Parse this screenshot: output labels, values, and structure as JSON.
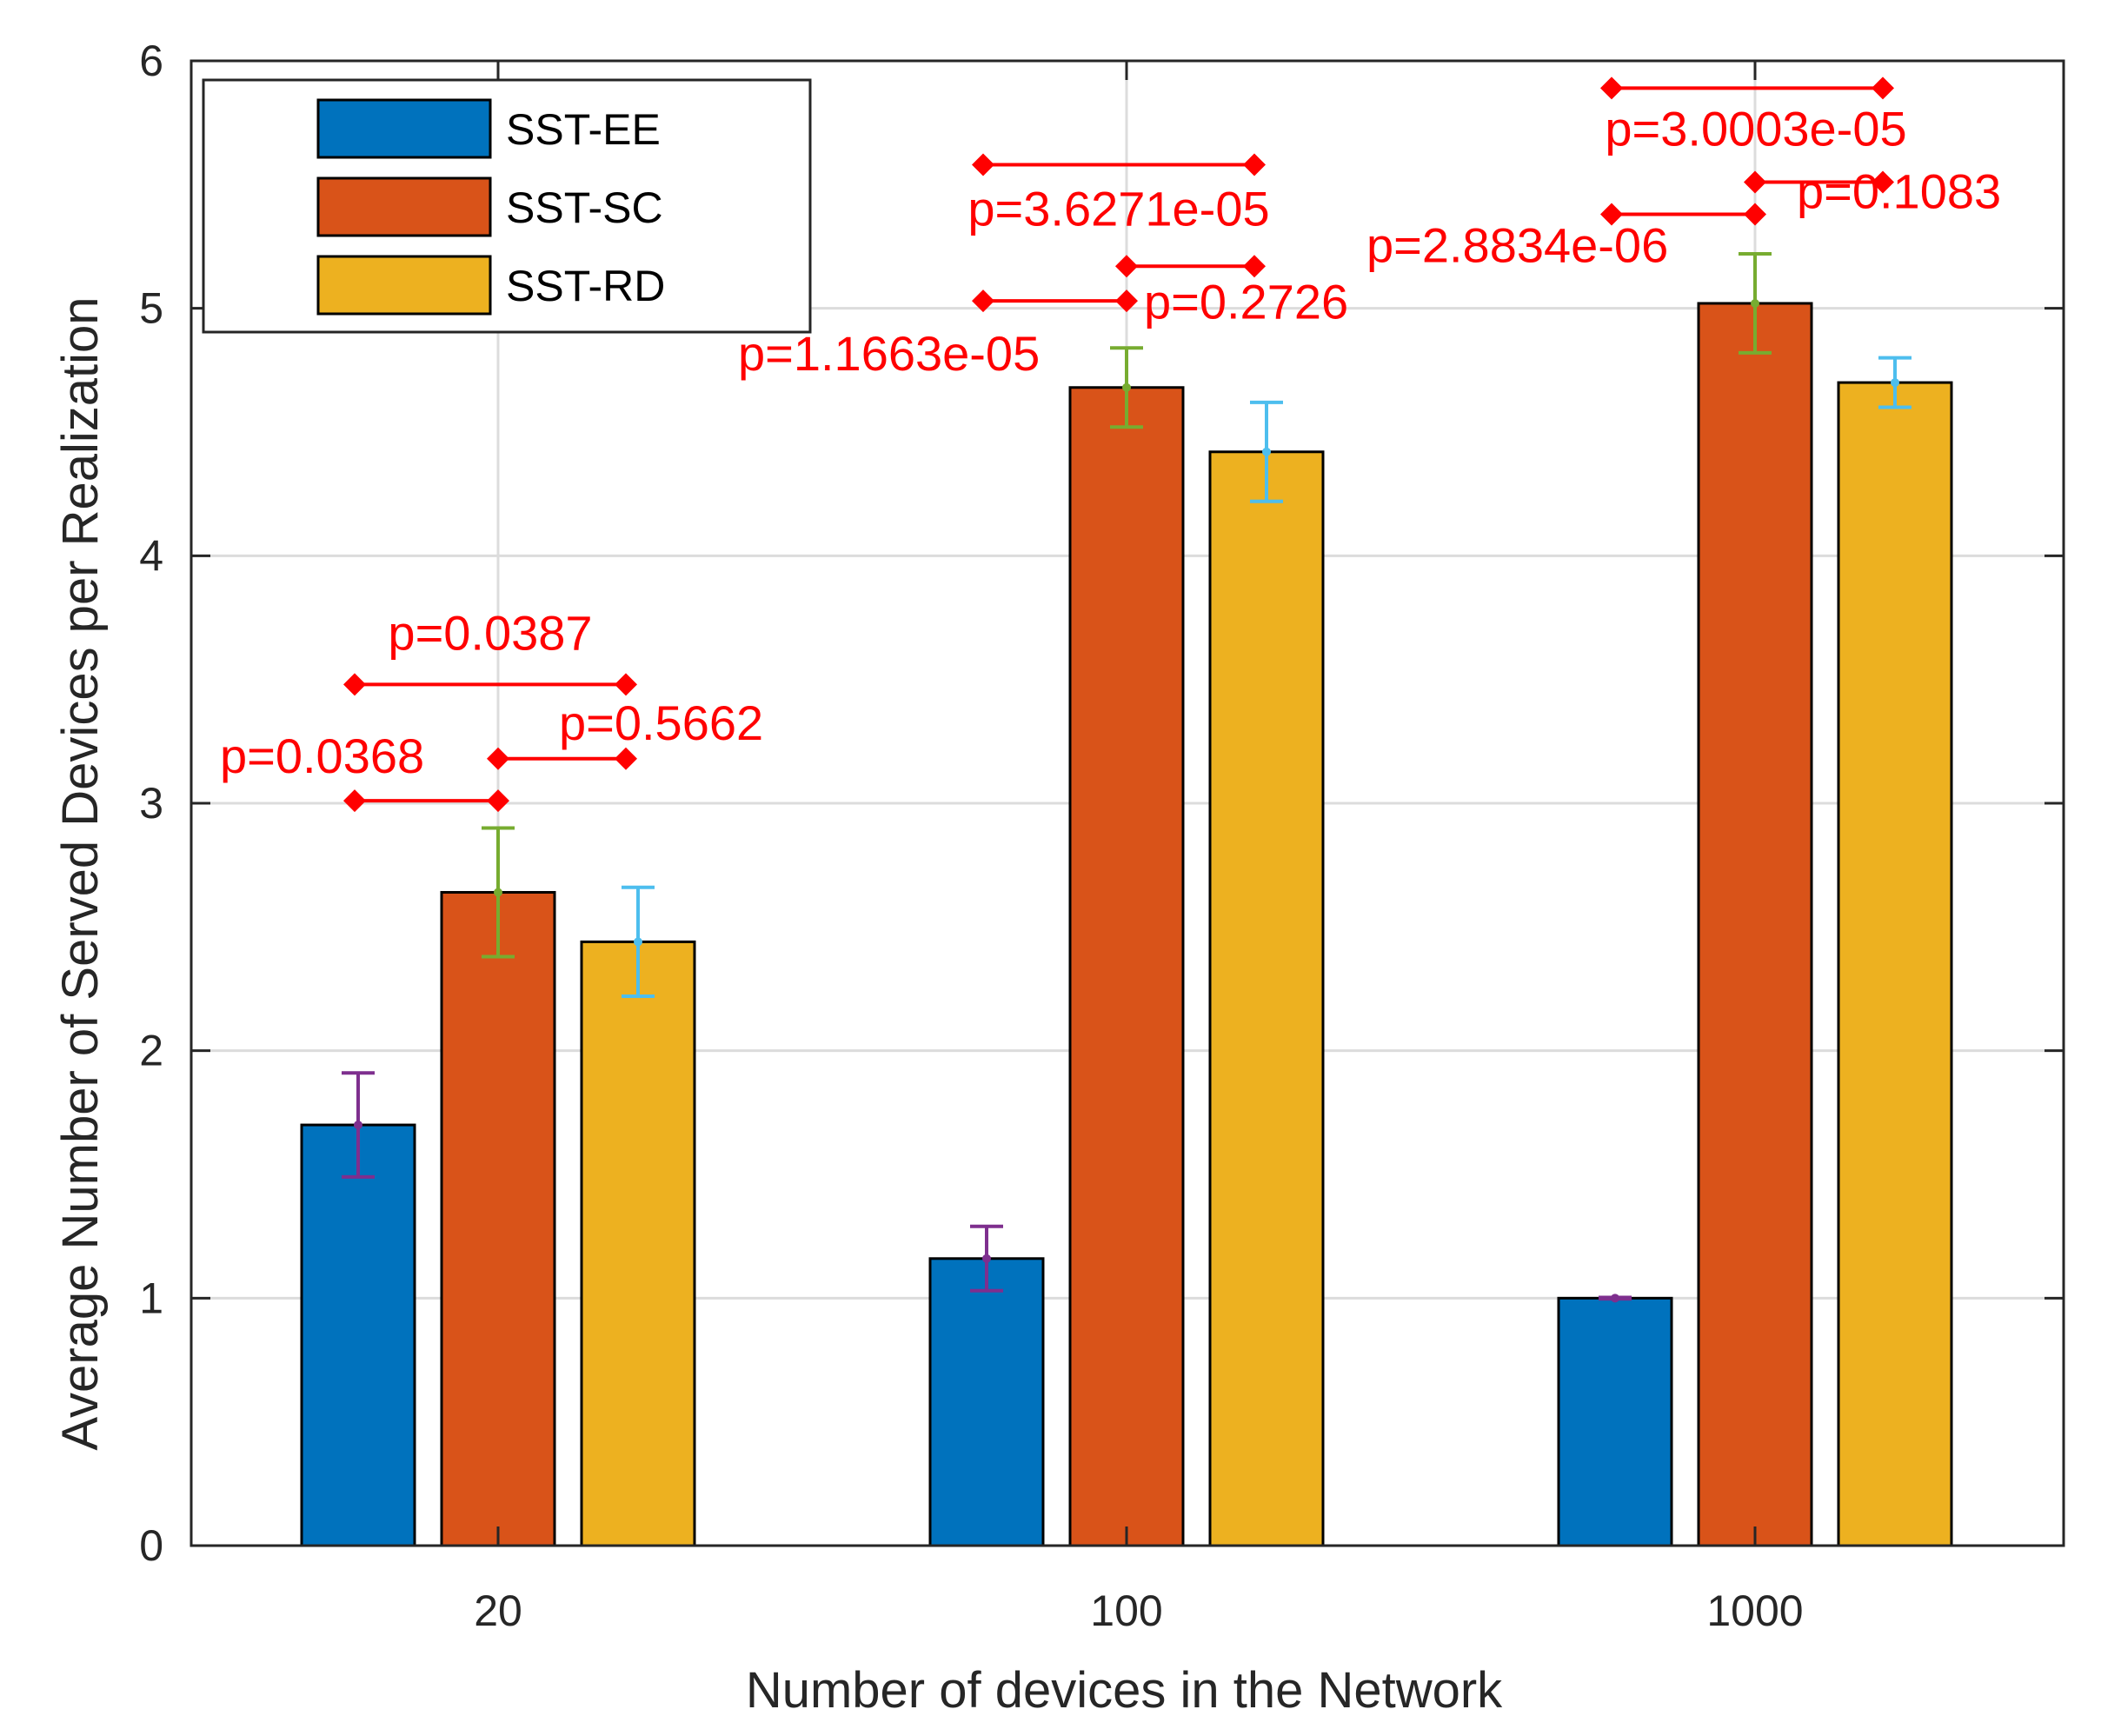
{
  "chart_data": {
    "type": "bar",
    "title": "",
    "xlabel": "Number of devices in the Network",
    "ylabel": "Average Number of Served Devices per Realization",
    "categories": [
      "20",
      "100",
      "1000"
    ],
    "ylim": [
      0,
      6
    ],
    "yticks": [
      0,
      1,
      2,
      3,
      4,
      5,
      6
    ],
    "grid": true,
    "legend_position": "top-left",
    "series": [
      {
        "name": "SST-EE",
        "color": "#0072BD",
        "values": [
          1.7,
          1.16,
          1.0
        ],
        "errors": [
          0.21,
          0.13,
          0.003
        ],
        "error_color": "#7E2F8E"
      },
      {
        "name": "SST-SC",
        "color": "#D95319",
        "values": [
          2.64,
          4.68,
          5.02
        ],
        "errors": [
          0.26,
          0.16,
          0.2
        ],
        "error_color": "#77AC30"
      },
      {
        "name": "SST-RD",
        "color": "#EDB120",
        "values": [
          2.44,
          4.42,
          4.7
        ],
        "errors": [
          0.22,
          0.2,
          0.1
        ],
        "error_color": "#4DBEEE"
      }
    ],
    "significance": [
      {
        "category": 0,
        "from": 0,
        "to": 1,
        "y": 3.01,
        "label": "p=0.0368"
      },
      {
        "category": 0,
        "from": 1,
        "to": 2,
        "y": 3.18,
        "label": "p=0.5662"
      },
      {
        "category": 0,
        "from": 0,
        "to": 2,
        "y": 3.48,
        "label": "p=0.0387"
      },
      {
        "category": 1,
        "from": 0,
        "to": 1,
        "y": 5.03,
        "label": "p=1.1663e-05"
      },
      {
        "category": 1,
        "from": 1,
        "to": 2,
        "y": 5.17,
        "label": "p=0.2726"
      },
      {
        "category": 1,
        "from": 0,
        "to": 2,
        "y": 5.58,
        "label": "p=3.6271e-05"
      },
      {
        "category": 2,
        "from": 0,
        "to": 1,
        "y": 5.38,
        "label": "p=2.8834e-06"
      },
      {
        "category": 2,
        "from": 1,
        "to": 2,
        "y": 5.51,
        "label": "p=0.1083"
      },
      {
        "category": 2,
        "from": 0,
        "to": 2,
        "y": 5.89,
        "label": "p=3.0003e-05"
      }
    ]
  }
}
